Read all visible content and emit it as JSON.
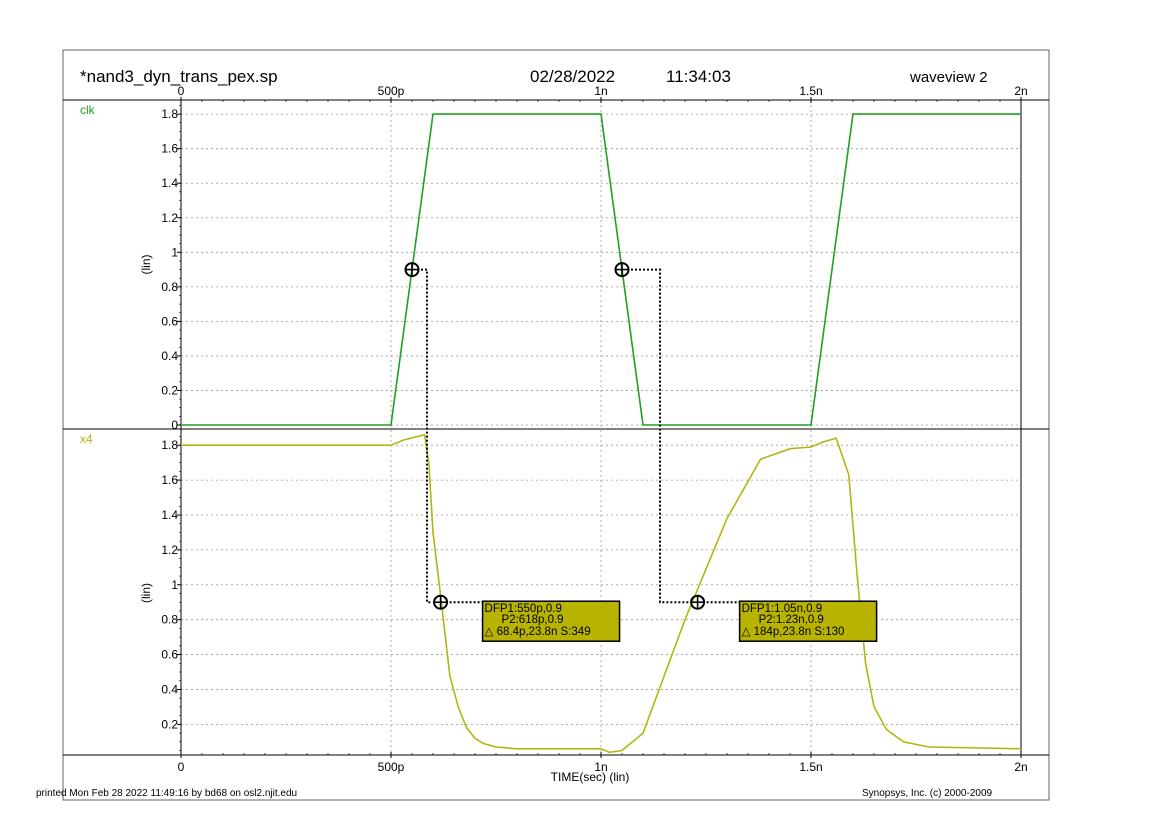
{
  "header": {
    "filename": "*nand3_dyn_trans_pex.sp",
    "date": "02/28/2022",
    "time": "11:34:03",
    "window": "waveview 2"
  },
  "footer": {
    "printed": "printed Mon Feb 28 2022 11:49:16 by bd68 on osl2.njit.edu",
    "copyright": "Synopsys, Inc. (c) 2000-2009"
  },
  "colors": {
    "clk": "#22a022",
    "x4": "#b5b512",
    "grid": "#9a9a9a",
    "marker_box": "#b7b300"
  },
  "chart_data": {
    "type": "line",
    "xlabel": "TIME(sec) (lin)",
    "xlim": [
      0,
      2e-09
    ],
    "x_ticks": [
      {
        "value": 0,
        "label": "0"
      },
      {
        "value": 5e-10,
        "label": "500p"
      },
      {
        "value": 1e-09,
        "label": "1n"
      },
      {
        "value": 1.5e-09,
        "label": "1.5n"
      },
      {
        "value": 2e-09,
        "label": "2n"
      }
    ],
    "grid": true,
    "panels": [
      {
        "name": "clk",
        "ylabel": "(lin)",
        "ylim": [
          0,
          1.85
        ],
        "y_ticks": [
          "0",
          "0.2",
          "0.4",
          "0.6",
          "0.8",
          "1",
          "1.2",
          "1.4",
          "1.6",
          "1.8"
        ],
        "y_tick_values": [
          0,
          0.2,
          0.4,
          0.6,
          0.8,
          1,
          1.2,
          1.4,
          1.6,
          1.8
        ],
        "series": [
          {
            "name": "clk",
            "color": "#22a022",
            "x": [
              0,
              5e-10,
              6e-10,
              1e-09,
              1.1e-09,
              1.5e-09,
              1.6e-09,
              2e-09
            ],
            "y": [
              0,
              0,
              1.8,
              1.8,
              0,
              0,
              1.8,
              1.8
            ]
          }
        ],
        "markers": [
          {
            "x": 5.5e-10,
            "y": 0.9
          },
          {
            "x": 1.05e-09,
            "y": 0.9
          }
        ]
      },
      {
        "name": "x4",
        "ylabel": "(lin)",
        "ylim": [
          0.03,
          1.87
        ],
        "y_ticks": [
          "0.2",
          "0.4",
          "0.6",
          "0.8",
          "1",
          "1.2",
          "1.4",
          "1.6",
          "1.8"
        ],
        "y_tick_values": [
          0.2,
          0.4,
          0.6,
          0.8,
          1,
          1.2,
          1.4,
          1.6,
          1.8
        ],
        "series": [
          {
            "name": "x4",
            "color": "#b5b512",
            "x": [
              0,
              5e-10,
              5.3e-10,
              5.8e-10,
              5.9e-10,
              6e-10,
              6.2e-10,
              6.4e-10,
              6.6e-10,
              6.8e-10,
              7e-10,
              7.2e-10,
              7.5e-10,
              8e-10,
              1e-09,
              1.02e-09,
              1.05e-09,
              1.1e-09,
              1.2e-09,
              1.3e-09,
              1.38e-09,
              1.45e-09,
              1.5e-09,
              1.53e-09,
              1.56e-09,
              1.59e-09,
              1.61e-09,
              1.63e-09,
              1.65e-09,
              1.68e-09,
              1.72e-09,
              1.78e-09,
              2e-09
            ],
            "y": [
              1.8,
              1.8,
              1.83,
              1.86,
              1.7,
              1.3,
              0.9,
              0.48,
              0.3,
              0.18,
              0.12,
              0.09,
              0.07,
              0.06,
              0.06,
              0.04,
              0.05,
              0.15,
              0.8,
              1.38,
              1.72,
              1.78,
              1.79,
              1.82,
              1.84,
              1.63,
              1.05,
              0.55,
              0.3,
              0.17,
              0.1,
              0.07,
              0.06
            ]
          }
        ],
        "markers": [
          {
            "x": 6.18e-10,
            "y": 0.9
          },
          {
            "x": 1.23e-09,
            "y": 0.9
          }
        ]
      }
    ],
    "measurements": [
      {
        "line1": "DFP1:550p,0.9",
        "line2": "P2:618p,0.9",
        "line3": "△ 68.4p,23.8n S:349",
        "from": {
          "panel": 0,
          "x": 5.5e-10,
          "y": 0.9
        },
        "to": {
          "panel": 1,
          "x": 6.18e-10,
          "y": 0.9
        }
      },
      {
        "line1": "DFP1:1.05n,0.9",
        "line2": "P2:1.23n,0.9",
        "line3": "△ 184p,23.8n S:130",
        "from": {
          "panel": 0,
          "x": 1.05e-09,
          "y": 0.9
        },
        "to": {
          "panel": 1,
          "x": 1.23e-09,
          "y": 0.9
        }
      }
    ]
  }
}
